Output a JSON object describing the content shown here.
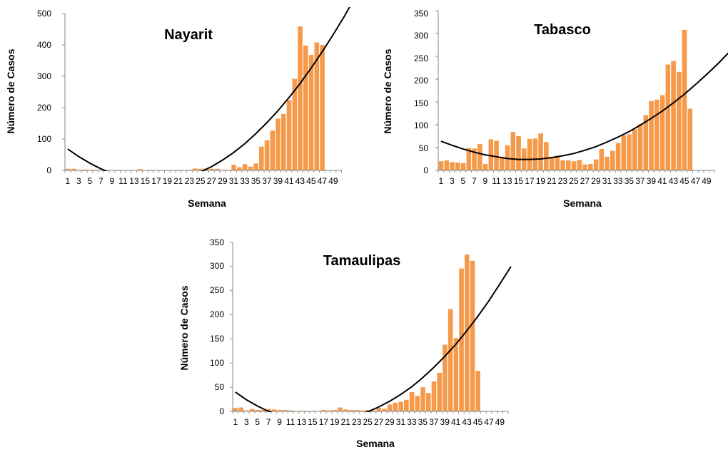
{
  "colors": {
    "bar": "#F59A4A",
    "trend": "#000000",
    "axis": "#868686"
  },
  "chart_data": [
    {
      "type": "bar",
      "title": "Nayarit",
      "xlabel": "Semana",
      "ylabel": "Número de Casos",
      "ylim": [
        0,
        500
      ],
      "yticks": [
        0,
        100,
        200,
        300,
        400,
        500
      ],
      "xticks": [
        1,
        3,
        5,
        7,
        9,
        11,
        13,
        15,
        17,
        19,
        21,
        23,
        25,
        27,
        29,
        31,
        33,
        35,
        37,
        39,
        41,
        43,
        45,
        47,
        49
      ],
      "x": [
        1,
        2,
        3,
        4,
        5,
        6,
        7,
        8,
        9,
        10,
        11,
        12,
        13,
        14,
        15,
        16,
        17,
        18,
        19,
        20,
        21,
        22,
        23,
        24,
        25,
        26,
        27,
        28,
        29,
        30,
        31,
        32,
        33,
        34,
        35,
        36,
        37,
        38,
        39,
        40,
        41,
        42,
        43,
        44,
        45,
        46,
        47,
        48,
        49,
        50
      ],
      "values": [
        5,
        5,
        2,
        3,
        2,
        2,
        0,
        0,
        0,
        2,
        0,
        1,
        0,
        4,
        1,
        2,
        0,
        0,
        1,
        0,
        2,
        1,
        2,
        6,
        5,
        6,
        5,
        5,
        2,
        2,
        18,
        10,
        20,
        12,
        22,
        76,
        96,
        127,
        165,
        180,
        224,
        292,
        459,
        398,
        368,
        408,
        400,
        0,
        0,
        0
      ],
      "trend": [
        68,
        44,
        23,
        5,
        -10,
        -22,
        -30,
        -35,
        -36,
        -34,
        -28,
        -18,
        -5,
        12,
        33,
        57,
        85,
        117,
        152,
        190,
        232,
        277,
        326,
        378,
        433,
        491,
        553
      ]
    },
    {
      "type": "bar",
      "title": "Tabasco",
      "xlabel": "Semana",
      "ylabel": "Número de Casos",
      "ylim": [
        0,
        350
      ],
      "yticks": [
        0,
        50,
        100,
        150,
        200,
        250,
        300,
        350
      ],
      "xticks": [
        1,
        3,
        5,
        7,
        9,
        11,
        13,
        15,
        17,
        19,
        21,
        23,
        25,
        27,
        29,
        31,
        33,
        35,
        37,
        39,
        41,
        43,
        45,
        47,
        49
      ],
      "x": [
        1,
        2,
        3,
        4,
        5,
        6,
        7,
        8,
        9,
        10,
        11,
        12,
        13,
        14,
        15,
        16,
        17,
        18,
        19,
        20,
        21,
        22,
        23,
        24,
        25,
        26,
        27,
        28,
        29,
        30,
        31,
        32,
        33,
        34,
        35,
        36,
        37,
        38,
        39,
        40,
        41,
        42,
        43,
        44,
        45,
        46,
        47,
        48,
        49,
        50
      ],
      "values": [
        20,
        22,
        18,
        17,
        16,
        49,
        48,
        58,
        14,
        68,
        65,
        30,
        55,
        84,
        75,
        48,
        69,
        70,
        81,
        62,
        30,
        32,
        22,
        22,
        20,
        23,
        13,
        14,
        24,
        47,
        30,
        43,
        60,
        77,
        79,
        90,
        101,
        121,
        152,
        155,
        165,
        232,
        240,
        216,
        308,
        135,
        0,
        0,
        0,
        0
      ],
      "trend": [
        64,
        55,
        47,
        40,
        34,
        30,
        26,
        24,
        24,
        25,
        28,
        32,
        37,
        44,
        52,
        62,
        73,
        85,
        99,
        114,
        130,
        148,
        167,
        188,
        210,
        233,
        258
      ]
    },
    {
      "type": "bar",
      "title": "Tamaulipas",
      "xlabel": "Semana",
      "ylabel": "Número de Casos",
      "ylim": [
        0,
        350
      ],
      "yticks": [
        0,
        50,
        100,
        150,
        200,
        250,
        300,
        350
      ],
      "xticks": [
        1,
        3,
        5,
        7,
        9,
        11,
        13,
        15,
        17,
        19,
        21,
        23,
        25,
        27,
        29,
        31,
        33,
        35,
        37,
        39,
        41,
        43,
        45,
        47,
        49
      ],
      "x": [
        1,
        2,
        3,
        4,
        5,
        6,
        7,
        8,
        9,
        10,
        11,
        12,
        13,
        14,
        15,
        16,
        17,
        18,
        19,
        20,
        21,
        22,
        23,
        24,
        25,
        26,
        27,
        28,
        29,
        30,
        31,
        32,
        33,
        34,
        35,
        36,
        37,
        38,
        39,
        40,
        41,
        42,
        43,
        44,
        45,
        46,
        47,
        48,
        49,
        50
      ],
      "values": [
        7,
        8,
        2,
        5,
        3,
        3,
        5,
        4,
        3,
        3,
        2,
        0,
        1,
        0,
        1,
        0,
        3,
        2,
        3,
        8,
        4,
        3,
        3,
        2,
        3,
        2,
        7,
        5,
        14,
        18,
        20,
        24,
        40,
        32,
        50,
        38,
        62,
        80,
        138,
        212,
        152,
        296,
        325,
        312,
        84,
        0,
        0,
        0,
        0,
        0
      ],
      "trend": [
        40,
        24,
        11,
        0,
        -8,
        -15,
        -19,
        -21,
        -21,
        -19,
        -15,
        -9,
        -1,
        9,
        21,
        35,
        51,
        70,
        91,
        114,
        139,
        167,
        197,
        229,
        264,
        300
      ]
    }
  ]
}
